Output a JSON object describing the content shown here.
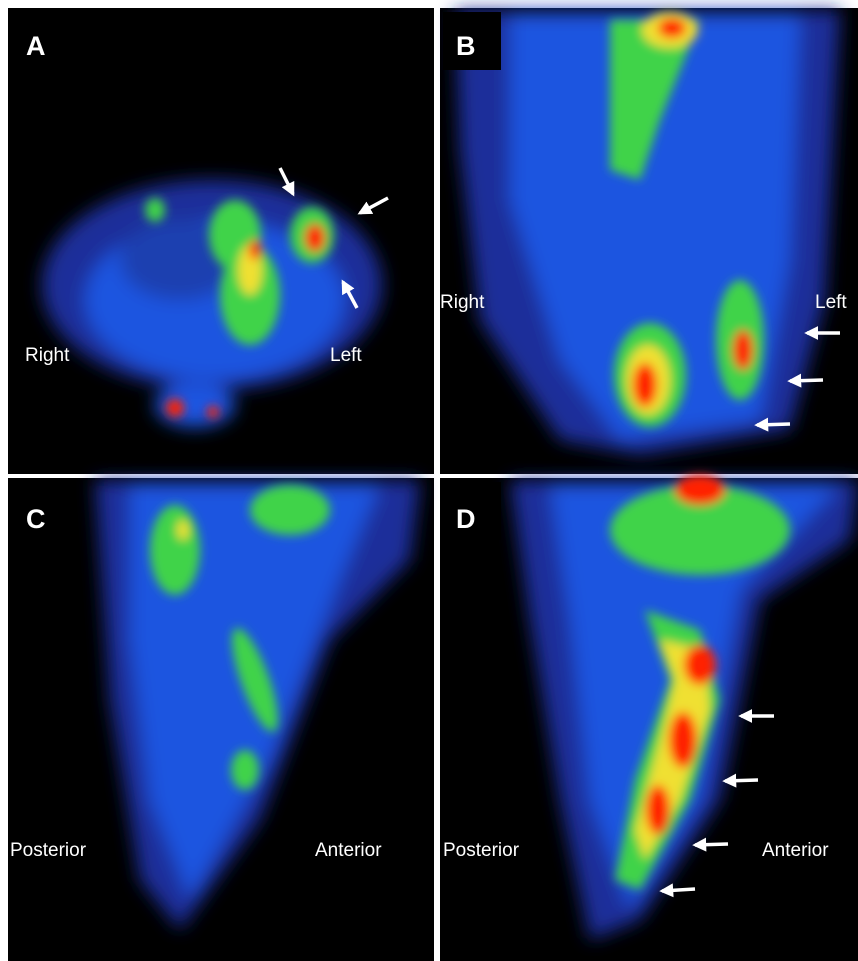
{
  "panels": [
    {
      "letter": "A",
      "labels": [
        "Right",
        "Left"
      ]
    },
    {
      "letter": "B",
      "labels": [
        "Right",
        "Left"
      ]
    },
    {
      "letter": "C",
      "labels": [
        "Posterior",
        "Anterior"
      ]
    },
    {
      "letter": "D",
      "labels": [
        "Posterior",
        "Anterior"
      ]
    }
  ]
}
